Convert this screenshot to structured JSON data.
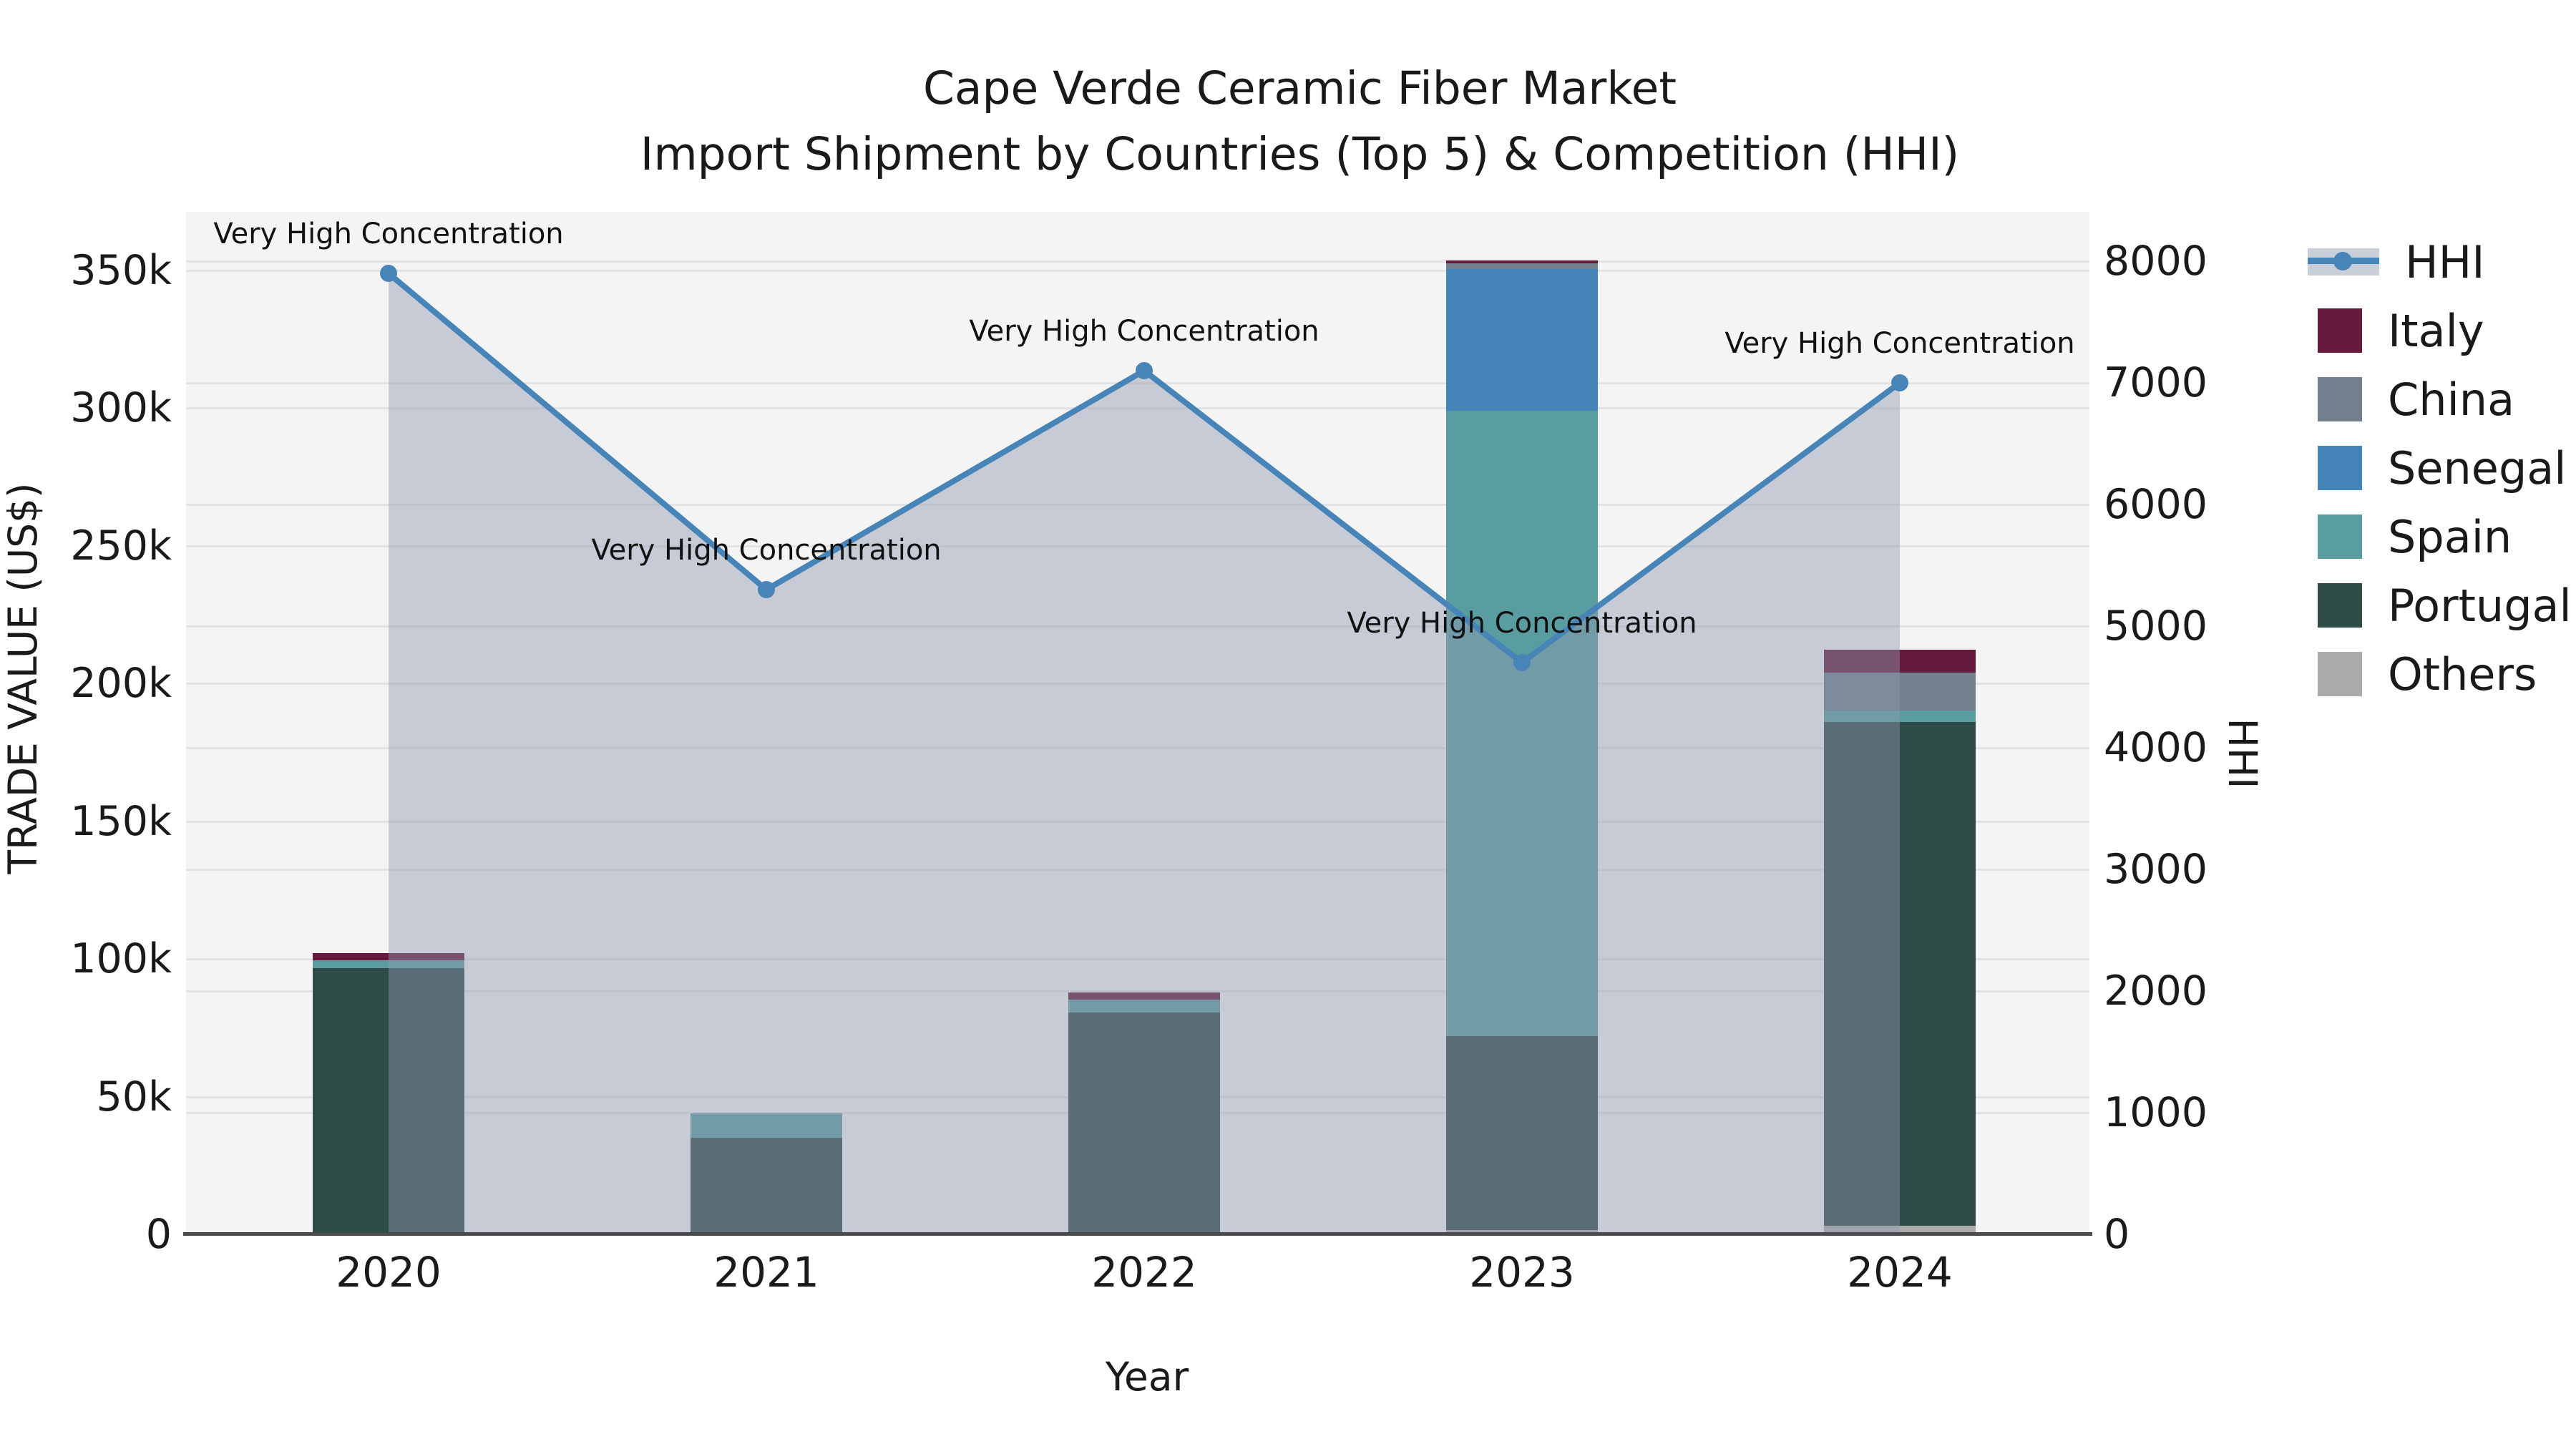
{
  "title": {
    "line1": "Cape Verde Ceramic Fiber Market",
    "line2": "Import Shipment by Countries (Top 5) & Competition (HHI)"
  },
  "axes": {
    "left": {
      "title": "TRADE VALUE (US$)",
      "tick_labels": [
        "0",
        "50k",
        "100k",
        "150k",
        "200k",
        "250k",
        "300k",
        "350k"
      ]
    },
    "right": {
      "title": "HHI",
      "tick_labels": [
        "0",
        "1000",
        "2000",
        "3000",
        "4000",
        "5000",
        "6000",
        "7000",
        "8000"
      ]
    },
    "x": {
      "title": "Year",
      "tick_labels": [
        "2020",
        "2021",
        "2022",
        "2023",
        "2024"
      ]
    }
  },
  "legend": {
    "items": [
      {
        "label": "HHI",
        "type": "line",
        "color": "#4784b8"
      },
      {
        "label": "Italy",
        "type": "box",
        "color": "#671b3c"
      },
      {
        "label": "China",
        "type": "box",
        "color": "#72808e"
      },
      {
        "label": "Senegal",
        "type": "box",
        "color": "#4484b8"
      },
      {
        "label": "Spain",
        "type": "box",
        "color": "#5a9da0"
      },
      {
        "label": "Portugal",
        "type": "box",
        "color": "#2e4b47"
      },
      {
        "label": "Others",
        "type": "box",
        "color": "#ababab"
      }
    ]
  },
  "chart_data": {
    "type": "bar+line",
    "title": "Cape Verde Ceramic Fiber Market — Import Shipment by Countries (Top 5) & Competition (HHI)",
    "categories": [
      "2020",
      "2021",
      "2022",
      "2023",
      "2024"
    ],
    "bar_unit": "US$ thousands",
    "bar_stack_order_bottom_to_top": [
      "Others",
      "Portugal",
      "Spain",
      "Senegal",
      "China",
      "Italy"
    ],
    "series": [
      {
        "name": "Others",
        "color": "#ababab",
        "values": [
          0,
          0,
          0,
          1.5,
          3
        ]
      },
      {
        "name": "Portugal",
        "color": "#2e4b47",
        "values": [
          96.5,
          35,
          80.5,
          70.5,
          183
        ]
      },
      {
        "name": "Spain",
        "color": "#5a9da0",
        "values": [
          3,
          9,
          4.6,
          227,
          4.2
        ]
      },
      {
        "name": "Senegal",
        "color": "#4484b8",
        "values": [
          0,
          0,
          0,
          51.5,
          0
        ]
      },
      {
        "name": "China",
        "color": "#72808e",
        "values": [
          0,
          0,
          0,
          2,
          13.7
        ]
      },
      {
        "name": "Italy",
        "color": "#671b3c",
        "values": [
          2.5,
          0,
          2.6,
          1,
          8.3
        ]
      }
    ],
    "line_series": {
      "name": "HHI",
      "color": "#4784b8",
      "area_fill": "rgba(142,154,176,0.45)",
      "values": [
        7900,
        5300,
        7100,
        4700,
        7000
      ]
    },
    "annotations": [
      {
        "category": "2020",
        "text": "Very High Concentration"
      },
      {
        "category": "2021",
        "text": "Very High Concentration"
      },
      {
        "category": "2022",
        "text": "Very High Concentration"
      },
      {
        "category": "2023",
        "text": "Very High Concentration"
      },
      {
        "category": "2024",
        "text": "Very High Concentration"
      }
    ],
    "xlabel": "Year",
    "ylabel_left": "TRADE VALUE (US$)",
    "ylabel_right": "HHI",
    "left_axis_ticks_k": [
      0,
      50,
      100,
      150,
      200,
      250,
      300,
      350
    ],
    "right_axis_ticks": [
      0,
      1000,
      2000,
      3000,
      4000,
      5000,
      6000,
      7000,
      8000
    ],
    "grid": true,
    "legend_position": "right"
  }
}
